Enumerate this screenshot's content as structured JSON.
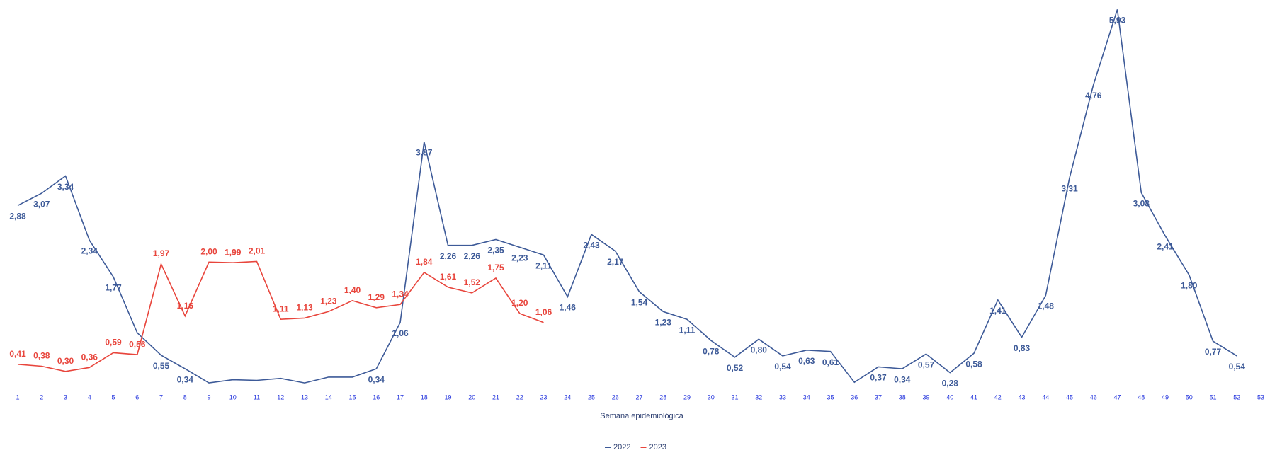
{
  "chart_data": {
    "type": "line",
    "x_label": "Semana epidemiológica",
    "categories": [
      1,
      2,
      3,
      4,
      5,
      6,
      7,
      8,
      9,
      10,
      11,
      12,
      13,
      14,
      15,
      16,
      17,
      18,
      19,
      20,
      21,
      22,
      23,
      24,
      25,
      26,
      27,
      28,
      29,
      30,
      31,
      32,
      33,
      34,
      35,
      36,
      37,
      38,
      39,
      40,
      41,
      42,
      43,
      44,
      45,
      46,
      47,
      48,
      49,
      50,
      51,
      52,
      53
    ],
    "ylim": [
      0,
      6
    ],
    "legend": "bottom",
    "series": [
      {
        "name": "2022",
        "color": "#3d5a98",
        "values": [
          2.88,
          3.07,
          3.34,
          2.34,
          1.77,
          0.9,
          0.55,
          0.34,
          0.12,
          0.17,
          0.16,
          0.19,
          0.12,
          0.21,
          0.21,
          0.34,
          1.06,
          3.87,
          2.26,
          2.26,
          2.35,
          2.23,
          2.11,
          1.46,
          2.43,
          2.17,
          1.54,
          1.23,
          1.11,
          0.78,
          0.52,
          0.8,
          0.54,
          0.63,
          0.61,
          0.13,
          0.37,
          0.34,
          0.57,
          0.28,
          0.58,
          1.41,
          0.83,
          1.48,
          3.31,
          4.76,
          5.93,
          3.08,
          2.41,
          1.8,
          0.77,
          0.54,
          null
        ],
        "value_labels": [
          "2,88",
          "3,07",
          "3,34",
          "2,34",
          "1,77",
          null,
          "0,55",
          "0,34",
          null,
          null,
          null,
          null,
          null,
          null,
          null,
          "0,34",
          "1,06",
          "3,87",
          "2,26",
          "2,26",
          "2,35",
          "2,23",
          "2,11",
          "1,46",
          "2,43",
          "2,17",
          "1,54",
          "1,23",
          "1,11",
          "0,78",
          "0,52",
          "0,80",
          "0,54",
          "0,63",
          "0,61",
          null,
          "0,37",
          "0,34",
          "0,57",
          "0,28",
          "0,58",
          "1,41",
          "0,83",
          "1,48",
          "3,31",
          "4,76",
          "5,93",
          "3,08",
          "2,41",
          "1,80",
          "0,77",
          "0,54",
          null
        ]
      },
      {
        "name": "2023",
        "color": "#e8453c",
        "values": [
          0.41,
          0.38,
          0.3,
          0.36,
          0.59,
          0.56,
          1.97,
          1.16,
          2.0,
          1.99,
          2.01,
          1.11,
          1.13,
          1.23,
          1.4,
          1.29,
          1.34,
          1.84,
          1.61,
          1.52,
          1.75,
          1.2,
          1.06,
          null,
          null,
          null,
          null,
          null,
          null,
          null,
          null,
          null,
          null,
          null,
          null,
          null,
          null,
          null,
          null,
          null,
          null,
          null,
          null,
          null,
          null,
          null,
          null,
          null,
          null,
          null,
          null,
          null,
          null
        ],
        "value_labels": [
          "0,41",
          "0,38",
          "0,30",
          "0,36",
          "0,59",
          "0,56",
          "1,97",
          "1,16",
          "2,00",
          "1,99",
          "2,01",
          "1,11",
          "1,13",
          "1,23",
          "1,40",
          "1,29",
          "1,34",
          "1,84",
          "1,61",
          "1,52",
          "1,75",
          "1,20",
          "1,06",
          null,
          null,
          null,
          null,
          null,
          null,
          null,
          null,
          null,
          null,
          null,
          null,
          null,
          null,
          null,
          null,
          null,
          null,
          null,
          null,
          null,
          null,
          null,
          null,
          null,
          null,
          null,
          null,
          null,
          null
        ]
      }
    ]
  }
}
